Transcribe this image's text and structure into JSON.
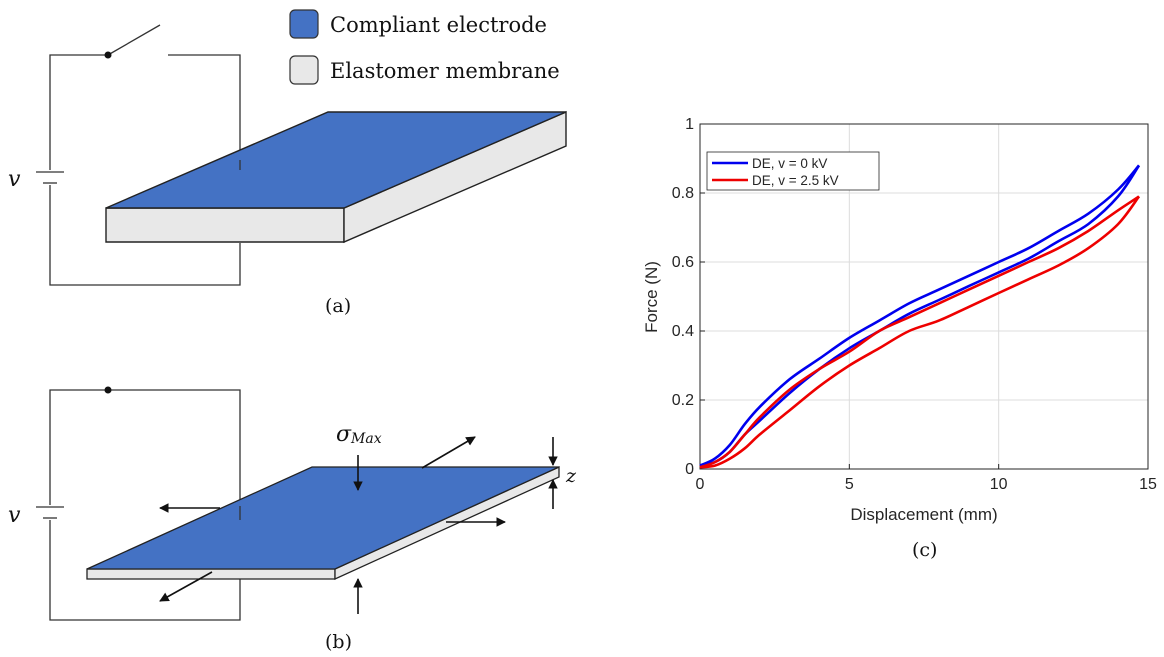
{
  "legend": {
    "electrode_label": "Compliant electrode",
    "electrode_color": "#4472c4",
    "membrane_label": "Elastomer membrane",
    "membrane_color": "#e8e8e8"
  },
  "panel_a": {
    "caption": "(a)",
    "voltage_label": "v"
  },
  "panel_b": {
    "caption": "(b)",
    "voltage_label": "v",
    "stress_symbol": "σ",
    "stress_subscript": "Max",
    "thickness_label": "z"
  },
  "panel_c": {
    "caption": "(c)"
  },
  "chart_data": {
    "type": "line",
    "xlabel": "Displacement (mm)",
    "ylabel": "Force (N)",
    "xlim": [
      0,
      15
    ],
    "ylim": [
      0,
      1
    ],
    "xticks": [
      "0",
      "5",
      "10",
      "15"
    ],
    "yticks": [
      "0",
      "0.2",
      "0.4",
      "0.6",
      "0.8",
      "1"
    ],
    "grid": true,
    "legend_position": "top-left",
    "series": [
      {
        "name": "DE, v = 0 kV",
        "color": "#0000ee",
        "loading": {
          "x": [
            0,
            0.5,
            1,
            1.5,
            2,
            3,
            4,
            5,
            6,
            7,
            8,
            9,
            10,
            11,
            12,
            13,
            14,
            14.7
          ],
          "y": [
            0.01,
            0.03,
            0.07,
            0.13,
            0.18,
            0.26,
            0.32,
            0.38,
            0.43,
            0.48,
            0.52,
            0.56,
            0.6,
            0.64,
            0.69,
            0.74,
            0.81,
            0.88
          ]
        },
        "unloading": {
          "x": [
            14.7,
            14,
            13,
            12,
            11,
            10,
            9,
            8,
            7,
            6,
            5,
            4,
            3,
            2,
            1.5,
            1,
            0.5,
            0
          ],
          "y": [
            0.88,
            0.79,
            0.71,
            0.66,
            0.61,
            0.57,
            0.53,
            0.49,
            0.45,
            0.4,
            0.35,
            0.29,
            0.22,
            0.14,
            0.1,
            0.05,
            0.02,
            0.01
          ]
        }
      },
      {
        "name": "DE, v = 2.5 kV",
        "color": "#ee0000",
        "loading": {
          "x": [
            0,
            0.5,
            1,
            1.5,
            2,
            3,
            4,
            5,
            6,
            7,
            8,
            9,
            10,
            11,
            12,
            13,
            14,
            14.7
          ],
          "y": [
            0.005,
            0.02,
            0.05,
            0.1,
            0.15,
            0.23,
            0.29,
            0.34,
            0.4,
            0.44,
            0.48,
            0.52,
            0.56,
            0.6,
            0.64,
            0.69,
            0.75,
            0.79
          ]
        },
        "unloading": {
          "x": [
            14.7,
            14,
            13,
            12,
            11,
            10,
            9,
            8,
            7,
            6,
            5,
            4,
            3,
            2,
            1.5,
            1,
            0.5,
            0
          ],
          "y": [
            0.79,
            0.71,
            0.64,
            0.59,
            0.55,
            0.51,
            0.47,
            0.43,
            0.4,
            0.35,
            0.3,
            0.24,
            0.17,
            0.1,
            0.06,
            0.03,
            0.01,
            0.005
          ]
        }
      }
    ]
  }
}
